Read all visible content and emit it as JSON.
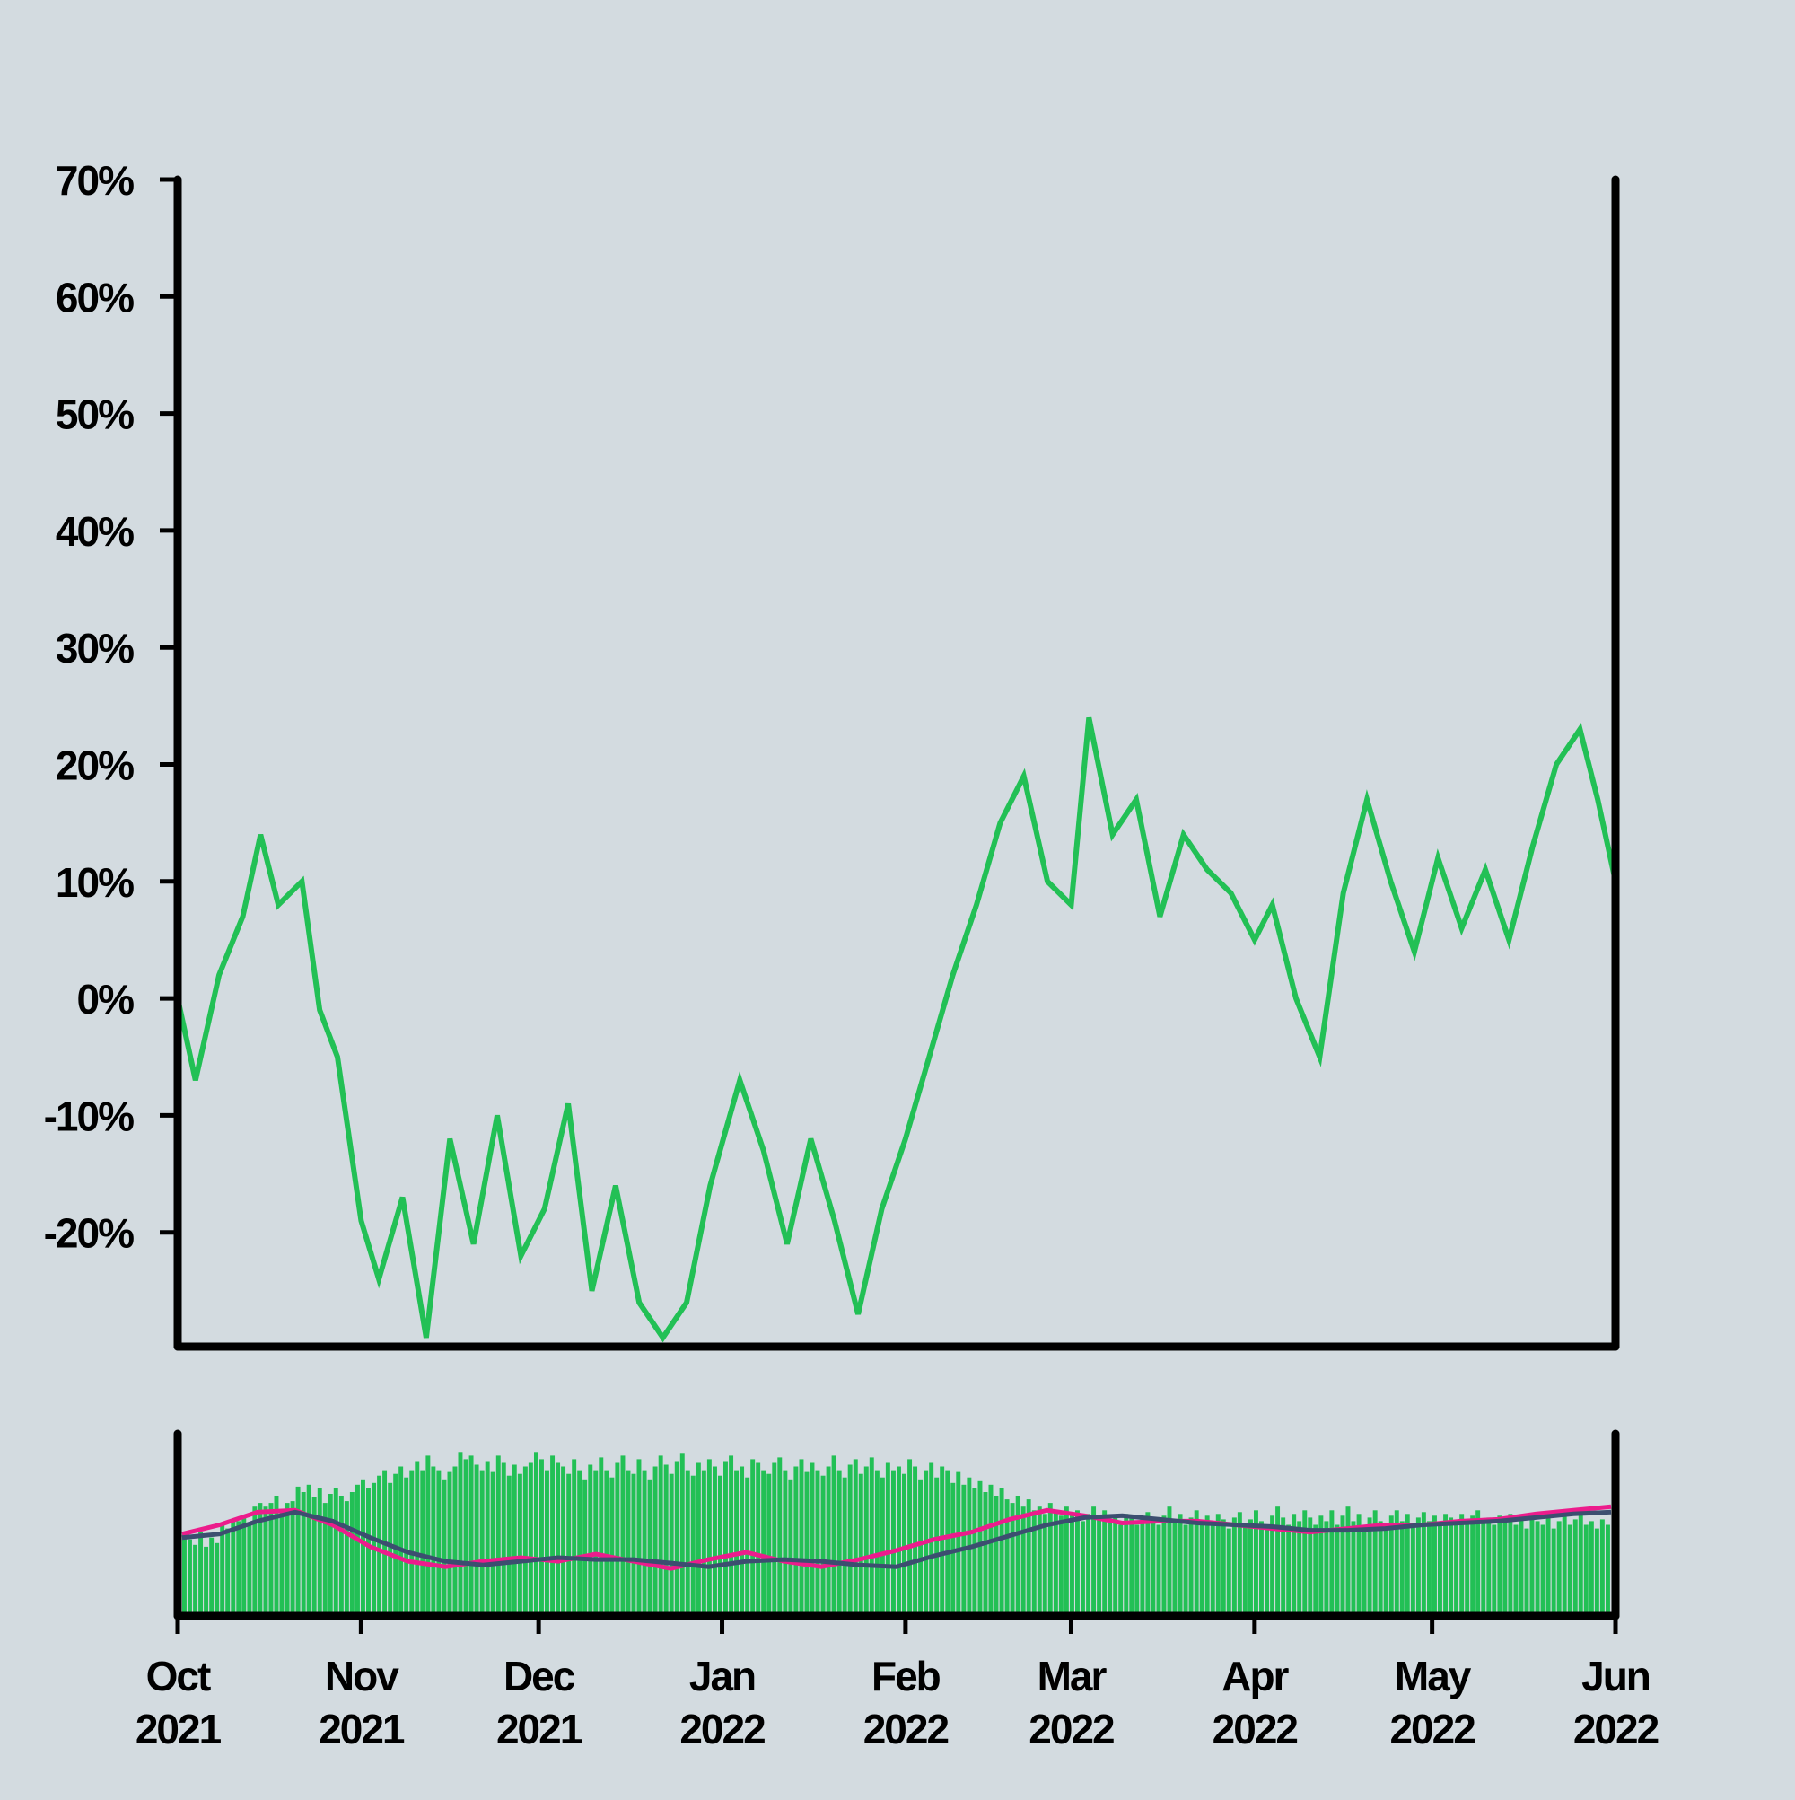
{
  "chart_data": {
    "type": "line",
    "title": "",
    "xlabel": "",
    "ylabel": "",
    "colors": {
      "background": "#d3dbe0",
      "price_line": "#22c055",
      "volume_bars": "#22c055",
      "volume_ma_short": "#ec1c8c",
      "volume_ma_long": "#3c4e70",
      "axes": "#000000"
    },
    "price_panel": {
      "ylim": [
        -29,
        70
      ],
      "yticks": [
        {
          "value": 70,
          "label": "70%"
        },
        {
          "value": 60,
          "label": "60%"
        },
        {
          "value": 50,
          "label": "50%"
        },
        {
          "value": 40,
          "label": "40%"
        },
        {
          "value": 30,
          "label": "30%"
        },
        {
          "value": 20,
          "label": "20%"
        },
        {
          "value": 10,
          "label": "10%"
        },
        {
          "value": 0,
          "label": "0%"
        },
        {
          "value": -10,
          "label": "-10%"
        },
        {
          "value": -20,
          "label": "-20%"
        }
      ],
      "series": [
        {
          "values_unit": "percent change",
          "x": [
            "2021-10-01",
            "2021-10-04",
            "2021-10-08",
            "2021-10-12",
            "2021-10-15",
            "2021-10-18",
            "2021-10-22",
            "2021-10-25",
            "2021-10-28",
            "2021-11-01",
            "2021-11-04",
            "2021-11-08",
            "2021-11-12",
            "2021-11-16",
            "2021-11-20",
            "2021-11-24",
            "2021-11-28",
            "2021-12-02",
            "2021-12-06",
            "2021-12-10",
            "2021-12-14",
            "2021-12-18",
            "2021-12-22",
            "2021-12-26",
            "2021-12-30",
            "2022-01-04",
            "2022-01-08",
            "2022-01-12",
            "2022-01-16",
            "2022-01-20",
            "2022-01-24",
            "2022-01-28",
            "2022-02-01",
            "2022-02-05",
            "2022-02-09",
            "2022-02-13",
            "2022-02-17",
            "2022-02-21",
            "2022-02-25",
            "2022-03-01",
            "2022-03-04",
            "2022-03-08",
            "2022-03-12",
            "2022-03-16",
            "2022-03-20",
            "2022-03-24",
            "2022-03-28",
            "2022-04-01",
            "2022-04-04",
            "2022-04-08",
            "2022-04-12",
            "2022-04-16",
            "2022-04-20",
            "2022-04-24",
            "2022-04-28",
            "2022-05-02",
            "2022-05-06",
            "2022-05-10",
            "2022-05-14",
            "2022-05-18",
            "2022-05-22",
            "2022-05-26",
            "2022-05-29",
            "2022-06-01"
          ],
          "values": [
            0,
            -7,
            2,
            7,
            14,
            8,
            10,
            -1,
            -5,
            -19,
            -24,
            -17,
            -29,
            -12,
            -21,
            -10,
            -22,
            -18,
            -9,
            -25,
            -16,
            -26,
            -29,
            -26,
            -16,
            -7,
            -13,
            -21,
            -12,
            -19,
            -27,
            -18,
            -12,
            -5,
            2,
            8,
            15,
            19,
            10,
            8,
            24,
            14,
            17,
            7,
            14,
            11,
            9,
            5,
            8,
            0,
            -5,
            9,
            17,
            10,
            4,
            12,
            6,
            11,
            5,
            13,
            20,
            23,
            17,
            10
          ]
        }
      ]
    },
    "volume_panel": {
      "series": [
        {
          "values_unit": "relative volume"
        },
        {
          "values_unit": "relative volume moving average"
        },
        {
          "values_unit": "relative volume moving average"
        }
      ]
    },
    "x_axis": {
      "xlim": [
        "2021-10-01",
        "2022-06-01"
      ],
      "ticks": [
        {
          "date": "2021-10-01",
          "month": "Oct",
          "year": "2021"
        },
        {
          "date": "2021-11-01",
          "month": "Nov",
          "year": "2021"
        },
        {
          "date": "2021-12-01",
          "month": "Dec",
          "year": "2021"
        },
        {
          "date": "2022-01-01",
          "month": "Jan",
          "year": "2022"
        },
        {
          "date": "2022-02-01",
          "month": "Feb",
          "year": "2022"
        },
        {
          "date": "2022-03-01",
          "month": "Mar",
          "year": "2022"
        },
        {
          "date": "2022-04-01",
          "month": "Apr",
          "year": "2022"
        },
        {
          "date": "2022-05-01",
          "month": "May",
          "year": "2022"
        },
        {
          "date": "2022-06-01",
          "month": "Jun",
          "year": "2022"
        }
      ]
    },
    "grid": false,
    "legend": "none"
  }
}
